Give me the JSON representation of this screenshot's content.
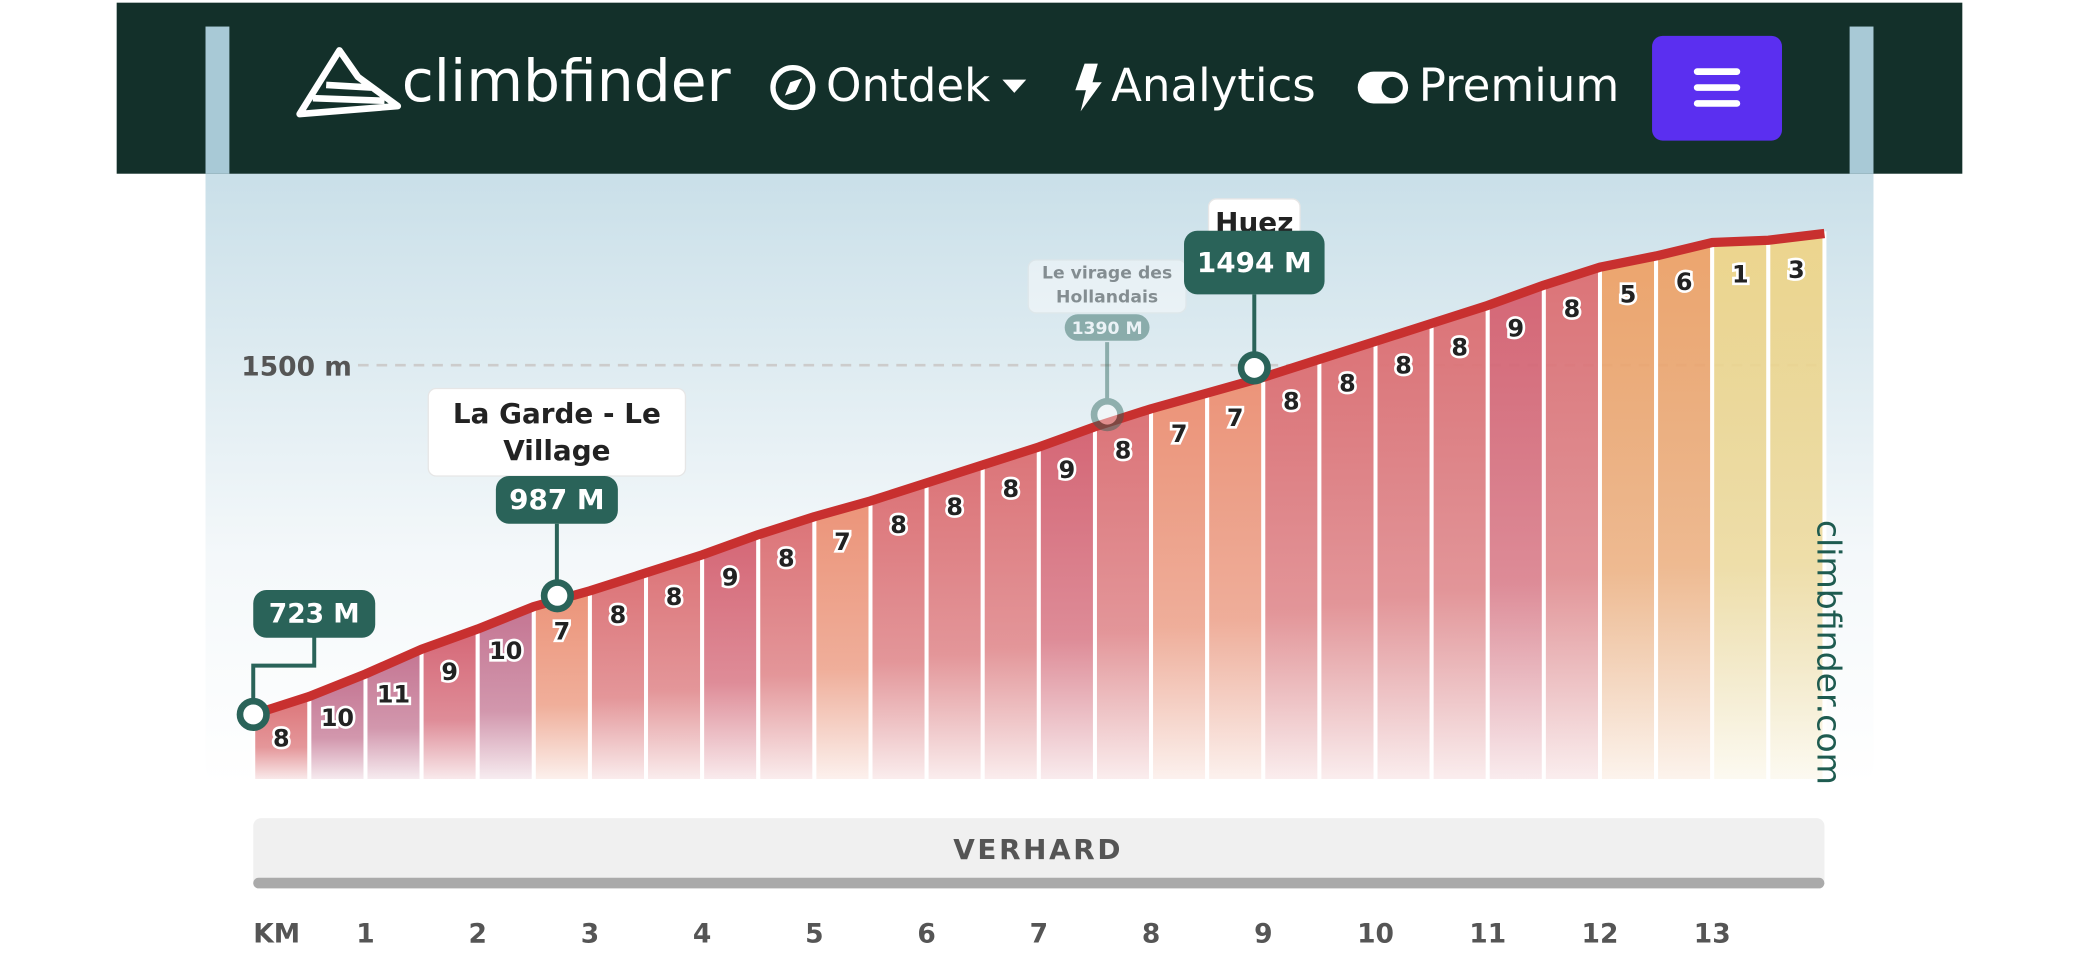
{
  "nav": {
    "brand": "climbfinder",
    "items": [
      "Ontdek",
      "Analytics",
      "Premium"
    ]
  },
  "chart_data": {
    "type": "climb-profile",
    "x_label": "KM",
    "surface": "VERHARD",
    "watermark": "climbfinder.com",
    "gradients": [
      8,
      10,
      11,
      9,
      10,
      7,
      8,
      8,
      9,
      8,
      7,
      8,
      8,
      8,
      9,
      8,
      7,
      7,
      8,
      8,
      8,
      8,
      9,
      8,
      5,
      6,
      1,
      3
    ],
    "xlim": [
      0,
      14
    ],
    "xticks": [
      1,
      2,
      3,
      4,
      5,
      6,
      7,
      8,
      9,
      10,
      11,
      12,
      13
    ],
    "ylim": [
      575,
      1923
    ],
    "yticks": [
      {
        "value": 1500,
        "label": "1500 m"
      }
    ],
    "points": {
      "x": [
        0,
        2.71,
        7.61,
        8.92
      ],
      "values": [
        723,
        987,
        1390,
        1494
      ],
      "value_labels": [
        "723 M",
        "987 M",
        "1390 M",
        "1494 M"
      ],
      "names": [
        null,
        "La Garde - Le Village",
        "Le virage des Hollandais",
        "Huez"
      ]
    }
  }
}
